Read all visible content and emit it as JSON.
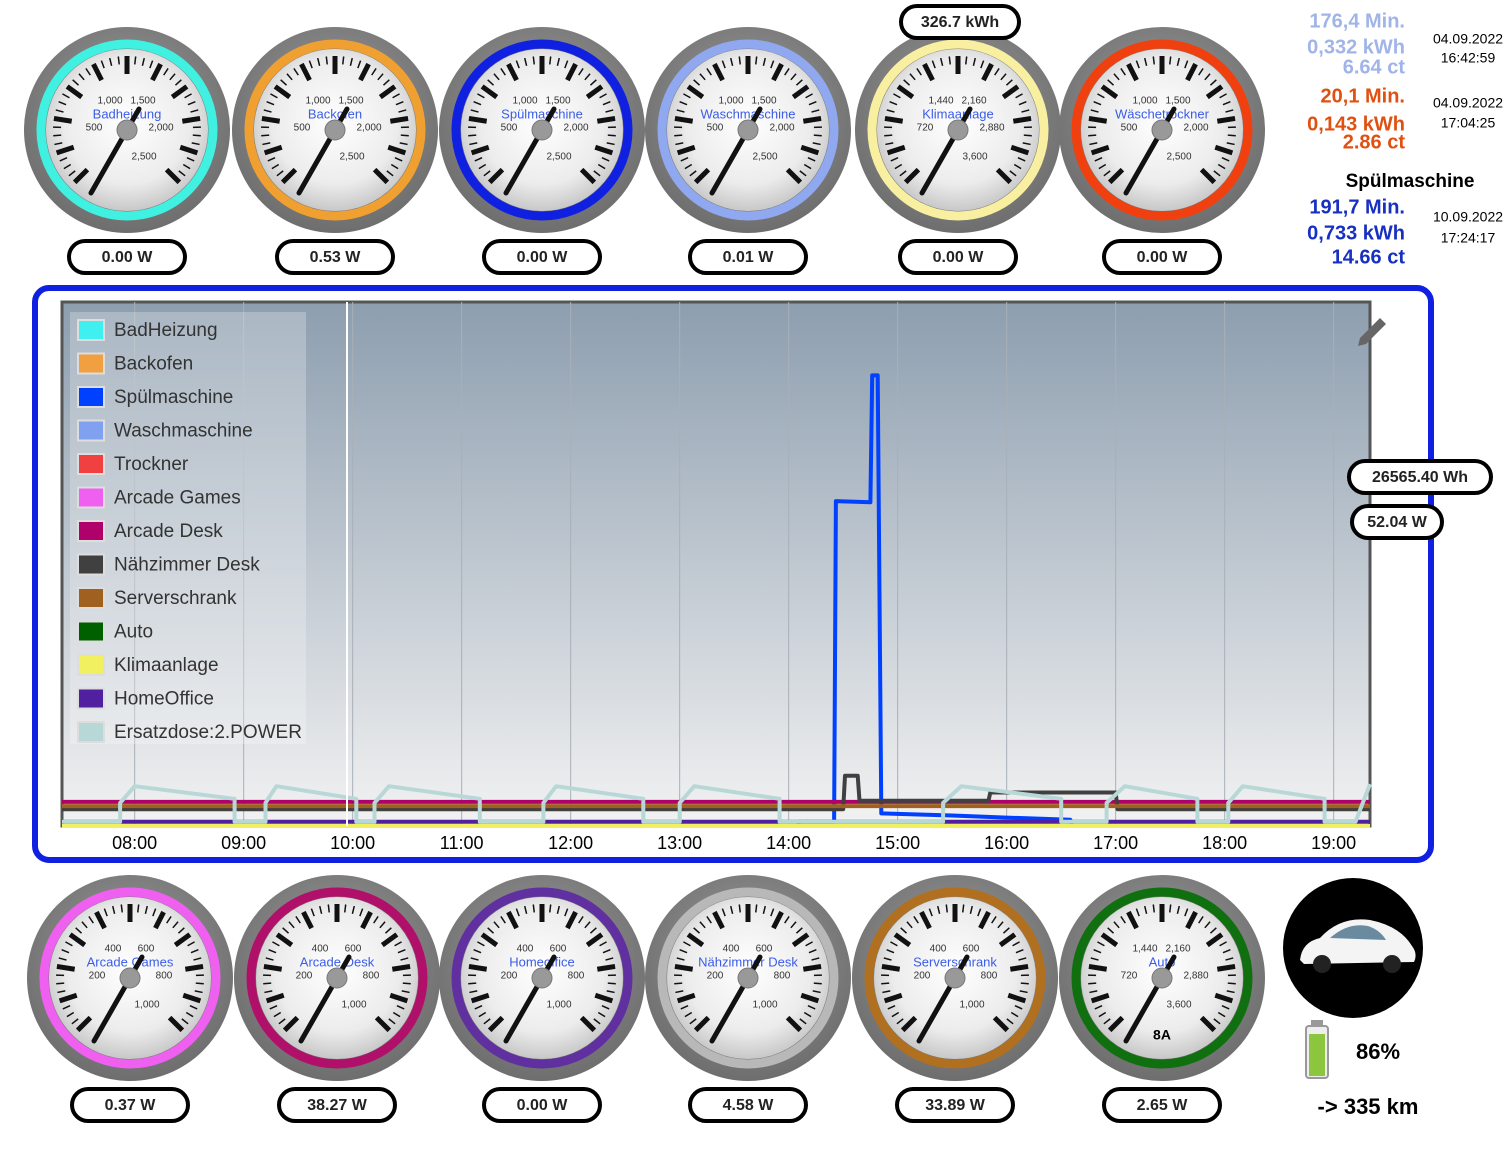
{
  "gauges_top": [
    {
      "label": "Badheizung",
      "color": "#40f0e0",
      "scale": [
        "1,000",
        "1,500",
        "500",
        "2,000",
        "2,500"
      ],
      "reading": "0.00 W"
    },
    {
      "label": "Backofen",
      "color": "#f0a030",
      "scale": [
        "1,000",
        "1,500",
        "500",
        "2,000",
        "2,500"
      ],
      "reading": "0.53 W"
    },
    {
      "label": "Spülmaschine",
      "color": "#1020e0",
      "scale": [
        "1,000",
        "1,500",
        "500",
        "2,000",
        "2,500"
      ],
      "reading": "0.00 W"
    },
    {
      "label": "Waschmaschine",
      "color": "#90a8f0",
      "scale": [
        "1,000",
        "1,500",
        "500",
        "2,000",
        "2,500"
      ],
      "reading": "0.01 W"
    },
    {
      "label": "Klimaanlage",
      "color": "#f8f0a0",
      "scale": [
        "1,440",
        "2,160",
        "720",
        "2,880",
        "3,600"
      ],
      "reading": "0.00 W"
    },
    {
      "label": "Wäschetrockner",
      "color": "#f04010",
      "scale": [
        "1,000",
        "1,500",
        "500",
        "2,000",
        "2,500"
      ],
      "reading": "0.00 W"
    }
  ],
  "klimaanlage_total": "326.7 kWh",
  "gauges_bottom": [
    {
      "label": "Arcade Games",
      "color": "#f060f0",
      "scale": [
        "400",
        "600",
        "200",
        "800",
        "1,000"
      ],
      "reading": "0.37 W"
    },
    {
      "label": "Arcade Desk",
      "color": "#b0106a",
      "scale": [
        "400",
        "600",
        "200",
        "800",
        "1,000"
      ],
      "reading": "38.27 W"
    },
    {
      "label": "Homeoffice",
      "color": "#6030a0",
      "scale": [
        "400",
        "600",
        "200",
        "800",
        "1,000"
      ],
      "reading": "0.00 W"
    },
    {
      "label": "Nähzimmer Desk",
      "color": "#b8b8b8",
      "scale": [
        "400",
        "600",
        "200",
        "800",
        "1,000"
      ],
      "reading": "4.58 W"
    },
    {
      "label": "Serverschrank",
      "color": "#b07020",
      "scale": [
        "400",
        "600",
        "200",
        "800",
        "1,000"
      ],
      "reading": "33.89 W"
    },
    {
      "label": "Auto",
      "color": "#107010",
      "scale": [
        "1,440",
        "2,160",
        "720",
        "2,880",
        "3,600"
      ],
      "reading": "2.65 W",
      "extra": "8A"
    }
  ],
  "stats": [
    {
      "color": "#a0b4e8",
      "minutes": "176,4 Min.",
      "energy": "0,332 kWh",
      "cost": "6.64 ct",
      "date": "04.09.2022",
      "time": "16:42:59"
    },
    {
      "color": "#e05010",
      "minutes": "20,1 Min.",
      "energy": "0,143 kWh",
      "cost": "2.86 ct",
      "date": "04.09.2022",
      "time": "17:04:25"
    },
    {
      "color": "#1830c0",
      "title": "Spülmaschine",
      "minutes": "191,7 Min.",
      "energy": "0,733 kWh",
      "cost": "14.66 ct",
      "date": "10.09.2022",
      "time": "17:24:17"
    }
  ],
  "chart_readouts": [
    "26565.40 Wh",
    "52.04 W"
  ],
  "car": {
    "battery": "86%",
    "range": "-> 335 km"
  },
  "chart_data": {
    "type": "line",
    "xlim": [
      "07:20",
      "19:20"
    ],
    "ylim": [
      0,
      2500
    ],
    "xticks": [
      "08:00",
      "09:00",
      "10:00",
      "11:00",
      "12:00",
      "13:00",
      "14:00",
      "15:00",
      "16:00",
      "17:00",
      "18:00",
      "19:00"
    ],
    "series": [
      {
        "name": "BadHeizung",
        "color": "#40f0f0",
        "x": [
          "07:20",
          "19:20"
        ],
        "values": [
          0,
          0
        ]
      },
      {
        "name": "Backofen",
        "color": "#f0a040",
        "x": [
          "07:20",
          "19:20"
        ],
        "values": [
          0,
          0
        ]
      },
      {
        "name": "Spülmaschine",
        "color": "#0040ff",
        "x": [
          "07:20",
          "14:05",
          "14:06",
          "14:25",
          "14:26",
          "14:45",
          "14:46",
          "14:49",
          "14:50",
          "14:51",
          "15:30",
          "16:00",
          "16:35",
          "16:36",
          "19:20"
        ],
        "values": [
          0,
          0,
          20,
          20,
          1550,
          1545,
          2150,
          2150,
          1100,
          60,
          50,
          40,
          30,
          0,
          0
        ]
      },
      {
        "name": "Waschmaschine",
        "color": "#80a0f0",
        "x": [
          "07:20",
          "19:20"
        ],
        "values": [
          0,
          0
        ]
      },
      {
        "name": "Trockner",
        "color": "#f04040",
        "x": [
          "07:20",
          "19:20"
        ],
        "values": [
          0,
          0
        ]
      },
      {
        "name": "Arcade Games",
        "color": "#f060f0",
        "x": [
          "07:20",
          "19:20"
        ],
        "values": [
          0,
          0
        ]
      },
      {
        "name": "Arcade Desk",
        "color": "#b0006a",
        "x": [
          "07:20",
          "19:20"
        ],
        "values": [
          115,
          115
        ]
      },
      {
        "name": "Nähzimmer Desk",
        "color": "#404040",
        "x": [
          "07:20",
          "14:30",
          "14:31",
          "14:38",
          "14:39",
          "15:50",
          "15:51",
          "17:00",
          "17:01",
          "19:20"
        ],
        "values": [
          80,
          80,
          240,
          240,
          120,
          120,
          160,
          160,
          80,
          80
        ]
      },
      {
        "name": "Serverschrank",
        "color": "#a06020",
        "x": [
          "07:20",
          "19:20"
        ],
        "values": [
          95,
          95
        ]
      },
      {
        "name": "Auto",
        "color": "#006000",
        "x": [
          "07:20",
          "19:20"
        ],
        "values": [
          0,
          0
        ]
      },
      {
        "name": "Klimaanlage",
        "color": "#f0f060",
        "x": [
          "07:20",
          "19:20"
        ],
        "values": [
          0,
          0
        ]
      },
      {
        "name": "HomeOffice",
        "color": "#5020a0",
        "x": [
          "07:20",
          "19:20"
        ],
        "values": [
          20,
          20
        ]
      },
      {
        "name": "Ersatzdose:2.POWER",
        "color": "#b8d8d8",
        "x": [
          "07:20",
          "07:52",
          "07:52",
          "08:00",
          "08:55",
          "08:55",
          "09:12",
          "09:12",
          "09:18",
          "10:02",
          "10:02",
          "10:12",
          "10:12",
          "10:20",
          "11:10",
          "11:10",
          "11:45",
          "11:45",
          "11:52",
          "12:40",
          "12:40",
          "13:00",
          "13:00",
          "13:08",
          "13:55",
          "13:55",
          "14:30",
          "15:25",
          "15:25",
          "15:35",
          "16:30",
          "16:30",
          "16:55",
          "16:55",
          "17:05",
          "17:45",
          "17:45",
          "18:02",
          "18:02",
          "18:10",
          "18:55",
          "18:55",
          "19:12",
          "19:20"
        ],
        "values": [
          20,
          20,
          110,
          190,
          130,
          20,
          20,
          110,
          190,
          130,
          20,
          20,
          110,
          190,
          130,
          20,
          20,
          110,
          190,
          130,
          20,
          20,
          110,
          190,
          130,
          20,
          20,
          20,
          110,
          190,
          130,
          20,
          20,
          110,
          190,
          130,
          20,
          20,
          110,
          190,
          130,
          20,
          20,
          200
        ]
      }
    ]
  }
}
